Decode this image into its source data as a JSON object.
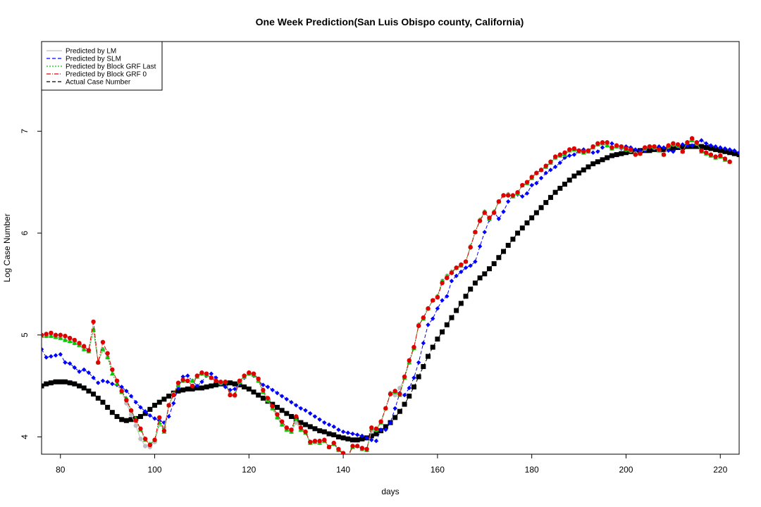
{
  "chart_data": {
    "type": "scatter",
    "title": "One Week Prediction(San Luis Obispo county, California)",
    "xlabel": "days",
    "ylabel": "Log Case Number",
    "xlim": [
      76,
      224
    ],
    "ylim": [
      3.83,
      7.88
    ],
    "xticks": [
      80,
      100,
      120,
      140,
      160,
      180,
      200,
      220
    ],
    "yticks": [
      4,
      5,
      6,
      7
    ],
    "x_start": 76,
    "legend_position": "top-left",
    "grid": false,
    "series": [
      {
        "name": "Actual Case Number",
        "style": "dash",
        "marker": "square",
        "color": "#000000",
        "values": [
          4.5,
          4.52,
          4.53,
          4.54,
          4.54,
          4.54,
          4.53,
          4.52,
          4.5,
          4.48,
          4.45,
          4.42,
          4.38,
          4.34,
          4.29,
          4.24,
          4.2,
          4.17,
          4.16,
          4.17,
          4.18,
          4.2,
          4.23,
          4.27,
          4.31,
          4.34,
          4.37,
          4.4,
          4.43,
          4.45,
          4.46,
          4.47,
          4.47,
          4.48,
          4.48,
          4.49,
          4.5,
          4.51,
          4.52,
          4.52,
          4.53,
          4.52,
          4.51,
          4.49,
          4.47,
          4.44,
          4.41,
          4.38,
          4.35,
          4.32,
          4.29,
          4.26,
          4.23,
          4.2,
          4.17,
          4.14,
          4.12,
          4.1,
          4.08,
          4.06,
          4.05,
          4.03,
          4.02,
          4.0,
          3.99,
          3.98,
          3.97,
          3.97,
          3.98,
          3.99,
          4.01,
          4.03,
          4.06,
          4.1,
          4.14,
          4.19,
          4.25,
          4.32,
          4.4,
          4.49,
          4.59,
          4.69,
          4.79,
          4.88,
          4.96,
          5.03,
          5.1,
          5.17,
          5.24,
          5.31,
          5.38,
          5.45,
          5.51,
          5.56,
          5.6,
          5.65,
          5.7,
          5.76,
          5.82,
          5.88,
          5.94,
          6.0,
          6.05,
          6.1,
          6.15,
          6.2,
          6.25,
          6.3,
          6.35,
          6.4,
          6.44,
          6.48,
          6.52,
          6.56,
          6.59,
          6.62,
          6.65,
          6.68,
          6.7,
          6.72,
          6.74,
          6.76,
          6.77,
          6.78,
          6.79,
          6.8,
          6.8,
          6.81,
          6.81,
          6.81,
          6.82,
          6.82,
          6.82,
          6.83,
          6.83,
          6.84,
          6.84,
          6.85,
          6.85,
          6.85,
          6.85,
          6.84,
          6.83,
          6.82,
          6.81,
          6.8,
          6.79,
          6.78,
          6.77
        ]
      },
      {
        "name": "Predicted by SLM",
        "style": "dash",
        "marker": "diamond",
        "color": "#0000ff",
        "values": [
          4.86,
          4.78,
          4.79,
          4.8,
          4.81,
          4.73,
          4.72,
          4.68,
          4.64,
          4.66,
          4.63,
          4.58,
          4.53,
          4.55,
          4.54,
          4.52,
          4.51,
          4.49,
          4.45,
          4.4,
          4.34,
          4.29,
          4.25,
          4.21,
          4.18,
          4.16,
          4.14,
          4.2,
          4.33,
          4.48,
          4.59,
          4.6,
          4.55,
          4.5,
          4.54,
          4.6,
          4.62,
          4.58,
          4.52,
          4.49,
          4.46,
          4.47,
          4.52,
          4.58,
          4.62,
          4.6,
          4.55,
          4.51,
          4.49,
          4.46,
          4.43,
          4.4,
          4.37,
          4.34,
          4.31,
          4.28,
          4.26,
          4.23,
          4.2,
          4.17,
          4.14,
          4.12,
          4.1,
          4.07,
          4.05,
          4.04,
          4.03,
          4.02,
          4.01,
          3.99,
          3.97,
          3.96,
          4.07,
          4.07,
          4.14,
          4.28,
          4.43,
          4.41,
          4.48,
          4.58,
          4.73,
          4.92,
          5.1,
          5.16,
          5.26,
          5.34,
          5.38,
          5.53,
          5.58,
          5.62,
          5.66,
          5.68,
          5.72,
          5.87,
          6.01,
          6.13,
          6.21,
          6.14,
          6.21,
          6.31,
          6.37,
          6.38,
          6.36,
          6.39,
          6.47,
          6.49,
          6.54,
          6.59,
          6.62,
          6.65,
          6.69,
          6.74,
          6.76,
          6.77,
          6.81,
          6.82,
          6.8,
          6.79,
          6.8,
          6.84,
          6.87,
          6.88,
          6.86,
          6.83,
          6.85,
          6.84,
          6.82,
          6.81,
          6.81,
          6.84,
          6.83,
          6.85,
          6.84,
          6.81,
          6.8,
          6.85,
          6.87,
          6.86,
          6.86,
          6.89,
          6.91,
          6.88,
          6.86,
          6.85,
          6.84,
          6.83,
          6.82,
          6.81,
          6.79
        ]
      },
      {
        "name": "Predicted by LM",
        "style": "solid",
        "marker": "circle",
        "color": "#bebebe",
        "values": [
          4.99,
          4.99,
          4.99,
          4.98,
          4.97,
          4.95,
          4.94,
          4.92,
          4.9,
          4.86,
          4.84,
          5.05,
          4.73,
          4.86,
          4.78,
          4.66,
          4.55,
          4.44,
          4.33,
          4.22,
          4.11,
          3.98,
          3.91,
          3.9,
          3.95,
          4.12,
          4.09,
          4.31,
          4.42,
          4.51,
          4.55,
          4.55,
          4.55,
          4.59,
          4.62,
          4.61,
          4.58,
          4.55,
          4.53,
          4.54,
          4.42,
          4.4,
          4.54,
          4.59,
          4.62,
          4.61,
          4.55,
          4.44,
          4.36,
          4.28,
          4.19,
          4.12,
          4.07,
          4.05,
          4.14,
          4.07,
          4.04,
          3.94,
          3.95,
          3.94,
          3.96,
          3.9,
          3.93,
          3.87,
          3.83,
          3.8,
          3.9,
          3.91,
          3.88,
          3.87,
          4.06,
          4.07,
          4.14,
          4.28,
          4.43,
          4.41,
          4.48,
          4.58,
          4.73,
          4.87,
          5.1,
          5.16,
          5.26,
          5.34,
          5.38,
          5.53,
          5.58,
          5.62,
          5.66,
          5.68,
          5.72,
          5.87,
          6.01,
          6.13,
          6.21,
          6.14,
          6.21,
          6.31,
          6.37,
          6.38,
          6.36,
          6.39,
          6.47,
          6.49,
          6.54,
          6.59,
          6.62,
          6.65,
          6.69,
          6.74,
          6.76,
          6.77,
          6.81,
          6.82,
          6.8,
          6.79,
          6.8,
          6.84,
          6.87,
          6.88,
          6.86,
          6.83,
          6.85,
          6.84,
          6.82,
          6.81,
          6.78,
          6.78,
          6.83,
          6.85,
          6.84,
          6.81,
          6.77,
          6.85,
          6.87,
          6.86,
          6.8,
          6.89,
          6.91,
          6.88,
          6.8,
          6.78,
          6.76,
          6.74,
          6.75,
          6.72,
          6.7
        ]
      },
      {
        "name": "Predicted by Block GRF Last",
        "style": "dotted",
        "marker": "triangle",
        "color": "#00cc00",
        "values": [
          4.99,
          4.99,
          4.99,
          4.98,
          4.97,
          4.95,
          4.94,
          4.92,
          4.9,
          4.86,
          4.84,
          5.05,
          4.73,
          4.86,
          4.78,
          4.62,
          4.52,
          4.44,
          4.38,
          4.26,
          4.18,
          4.07,
          3.97,
          3.93,
          3.97,
          4.14,
          4.05,
          4.31,
          4.42,
          4.51,
          4.55,
          4.55,
          4.55,
          4.59,
          4.62,
          4.61,
          4.58,
          4.55,
          4.53,
          4.54,
          4.42,
          4.42,
          4.54,
          4.59,
          4.62,
          4.61,
          4.55,
          4.44,
          4.36,
          4.28,
          4.19,
          4.12,
          4.07,
          4.05,
          4.18,
          4.07,
          4.04,
          3.94,
          3.95,
          3.94,
          3.96,
          3.9,
          3.93,
          3.87,
          3.83,
          3.8,
          3.9,
          3.91,
          3.88,
          3.87,
          4.08,
          4.07,
          4.14,
          4.28,
          4.43,
          4.44,
          4.41,
          4.58,
          4.73,
          4.87,
          5.1,
          5.16,
          5.26,
          5.34,
          5.38,
          5.53,
          5.58,
          5.62,
          5.66,
          5.68,
          5.72,
          5.87,
          6.01,
          6.13,
          6.21,
          6.14,
          6.21,
          6.31,
          6.37,
          6.38,
          6.36,
          6.39,
          6.47,
          6.49,
          6.54,
          6.59,
          6.62,
          6.65,
          6.69,
          6.74,
          6.76,
          6.77,
          6.81,
          6.82,
          6.8,
          6.79,
          6.8,
          6.84,
          6.87,
          6.88,
          6.86,
          6.83,
          6.85,
          6.84,
          6.82,
          6.81,
          6.78,
          6.78,
          6.83,
          6.85,
          6.84,
          6.81,
          6.77,
          6.85,
          6.87,
          6.86,
          6.8,
          6.89,
          6.91,
          6.88,
          6.8,
          6.78,
          6.76,
          6.74,
          6.75,
          6.72,
          6.7
        ]
      },
      {
        "name": "Predicted by Block GRF 0",
        "style": "dashdot",
        "marker": "circle",
        "color": "#e00000",
        "values": [
          5.0,
          5.01,
          5.02,
          5.0,
          5.0,
          4.99,
          4.97,
          4.95,
          4.92,
          4.89,
          4.85,
          5.13,
          4.73,
          4.93,
          4.82,
          4.66,
          4.55,
          4.45,
          4.36,
          4.26,
          4.16,
          4.08,
          3.98,
          3.92,
          3.97,
          4.19,
          4.06,
          4.31,
          4.41,
          4.53,
          4.56,
          4.55,
          4.5,
          4.6,
          4.63,
          4.62,
          4.58,
          4.55,
          4.54,
          4.54,
          4.41,
          4.41,
          4.55,
          4.6,
          4.63,
          4.62,
          4.57,
          4.46,
          4.38,
          4.3,
          4.22,
          4.15,
          4.09,
          4.07,
          4.2,
          4.09,
          4.05,
          3.95,
          3.96,
          3.96,
          3.97,
          3.9,
          3.94,
          3.88,
          3.84,
          3.81,
          3.91,
          3.91,
          3.89,
          3.88,
          4.09,
          4.08,
          4.15,
          4.28,
          4.42,
          4.45,
          4.42,
          4.59,
          4.75,
          4.88,
          5.09,
          5.17,
          5.26,
          5.34,
          5.37,
          5.51,
          5.56,
          5.61,
          5.66,
          5.69,
          5.72,
          5.86,
          6.01,
          6.12,
          6.2,
          6.15,
          6.2,
          6.31,
          6.37,
          6.37,
          6.37,
          6.4,
          6.47,
          6.5,
          6.55,
          6.59,
          6.62,
          6.66,
          6.7,
          6.75,
          6.77,
          6.79,
          6.82,
          6.83,
          6.81,
          6.8,
          6.81,
          6.85,
          6.88,
          6.89,
          6.89,
          6.84,
          6.86,
          6.85,
          6.83,
          6.82,
          6.77,
          6.78,
          6.84,
          6.85,
          6.85,
          6.82,
          6.77,
          6.86,
          6.88,
          6.87,
          6.8,
          6.89,
          6.93,
          6.89,
          6.81,
          6.79,
          6.77,
          6.75,
          6.76,
          6.73,
          6.7
        ]
      }
    ],
    "legend_order": [
      "Predicted by LM",
      "Predicted by SLM",
      "Predicted by Block GRF Last",
      "Predicted by Block GRF 0",
      "Actual Case Number"
    ]
  }
}
